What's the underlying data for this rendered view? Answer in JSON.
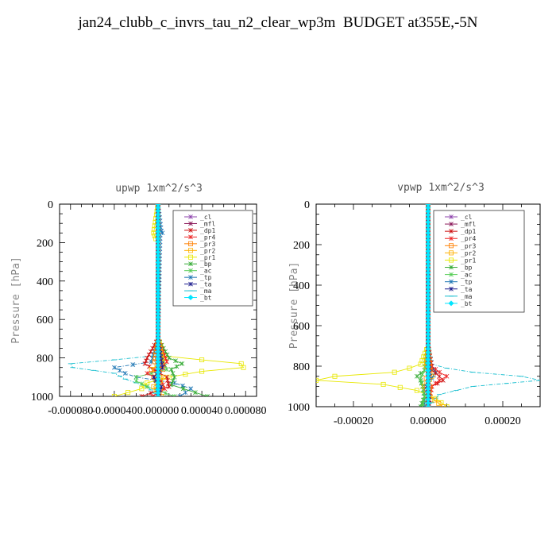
{
  "title": "jan24_clubb_c_invrs_tau_n2_clear_wp3m  BUDGET at355E,-5N",
  "legend_labels": [
    "_cl",
    "_mfl",
    "_dp1",
    "_pr4",
    "_pr3",
    "_pr2",
    "_pr1",
    "_bp",
    "_ac",
    "_tp",
    "_ta",
    "_ma",
    "_bt"
  ],
  "colors": {
    "_cl": "#8e44ad",
    "_mfl": "#8b1a5a",
    "_dp1": "#cc1111",
    "_pr4": "#ee2222",
    "_pr3": "#ff7f00",
    "_pr2": "#ffb000",
    "_pr1": "#e8e800",
    "_bp": "#33aa33",
    "_ac": "#55cc55",
    "_tp": "#1f77b4",
    "_ta": "#1a1a8c",
    "_ma": "#17becf",
    "_bt": "#00e5ff"
  },
  "chart_data": [
    {
      "type": "line",
      "title": "upwp  1xm^2/s^3",
      "ylabel": "Pressure [hPa]",
      "ylim": [
        1000,
        0
      ],
      "xlim": [
        -9e-05,
        9e-05
      ],
      "xticks": [
        "-0.000080",
        "-0.000040",
        "0.000000",
        "0.000040",
        "0.000080"
      ],
      "xtick_values": [
        -8e-05,
        -4e-05,
        0,
        4e-05,
        8e-05
      ],
      "yticks": [
        "0",
        "200",
        "400",
        "600",
        "800",
        "1000"
      ],
      "ytick_values": [
        0,
        200,
        400,
        600,
        800,
        1000
      ],
      "legend": "top-right",
      "series": [
        {
          "name": "_pr1",
          "p": [
            0,
            150,
            180,
            200,
            700,
            790,
            810,
            830,
            850,
            870,
            900,
            930,
            960,
            1000
          ],
          "v": [
            0,
            -4e-06,
            -2e-06,
            0,
            0,
            6e-06,
            4e-05,
            7.6e-05,
            7.8e-05,
            4e-05,
            1e-05,
            -1e-05,
            -1.5e-05,
            -4e-05
          ]
        },
        {
          "name": "_ma",
          "p": [
            0,
            700,
            790,
            810,
            830,
            850,
            880,
            910,
            950,
            1000
          ],
          "v": [
            0,
            0,
            -5e-06,
            -4e-05,
            -8e-05,
            -7.8e-05,
            -4e-05,
            -3e-05,
            -1e-05,
            0
          ]
        },
        {
          "name": "_tp",
          "p": [
            0,
            140,
            150,
            160,
            700,
            820,
            850,
            880,
            900,
            930,
            960,
            1000
          ],
          "v": [
            0,
            3e-06,
            4e-06,
            2e-06,
            0,
            -6e-06,
            -4e-05,
            -3e-05,
            -2e-05,
            1.5e-05,
            3e-05,
            2e-05
          ]
        },
        {
          "name": "_bp",
          "p": [
            0,
            700,
            800,
            830,
            860,
            900,
            940,
            1000
          ],
          "v": [
            0,
            0,
            1e-05,
            2.2e-05,
            1.2e-05,
            1.5e-05,
            1.2e-05,
            4.5e-05
          ]
        },
        {
          "name": "_ac",
          "p": [
            0,
            700,
            820,
            860,
            900,
            920,
            950,
            1000
          ],
          "v": [
            0,
            0,
            5e-06,
            8e-06,
            -2e-05,
            -2e-05,
            -1e-05,
            1.5e-05
          ]
        },
        {
          "name": "_dp1",
          "p": [
            0,
            700,
            800,
            830,
            860,
            900,
            950,
            1000
          ],
          "v": [
            0,
            0,
            -1e-05,
            -1.2e-05,
            -4e-06,
            8e-06,
            1e-05,
            -1.5e-05
          ]
        },
        {
          "name": "_pr4",
          "p": [
            0,
            700,
            820,
            850,
            880,
            920,
            960,
            1000
          ],
          "v": [
            0,
            0,
            8e-06,
            3e-06,
            -1e-05,
            3e-06,
            6e-06,
            -5e-06
          ]
        },
        {
          "name": "_pr2",
          "p": [
            0,
            700,
            820,
            860,
            900,
            950,
            1000
          ],
          "v": [
            0,
            0,
            4e-06,
            -6e-06,
            5e-06,
            -4e-06,
            3e-06
          ]
        },
        {
          "name": "_pr3",
          "p": [
            0,
            700,
            820,
            860,
            900,
            950,
            1000
          ],
          "v": [
            0,
            0,
            -3e-06,
            4e-06,
            -4e-06,
            3e-06,
            0
          ]
        },
        {
          "name": "_ta",
          "p": [
            0,
            700,
            850,
            900,
            950,
            1000
          ],
          "v": [
            0,
            0,
            4e-06,
            -4e-06,
            3e-06,
            0
          ]
        },
        {
          "name": "_cl",
          "p": [
            0,
            1000
          ],
          "v": [
            0,
            0
          ]
        },
        {
          "name": "_mfl",
          "p": [
            0,
            1000
          ],
          "v": [
            0,
            0
          ]
        },
        {
          "name": "_bt",
          "p": [
            0,
            1000
          ],
          "v": [
            0,
            0
          ]
        }
      ]
    },
    {
      "type": "line",
      "title": "vpwp  1xm^2/s^3",
      "ylabel": "Pressure [hPa]",
      "ylim": [
        1000,
        0
      ],
      "xlim": [
        -0.0003,
        0.0003
      ],
      "xticks": [
        "-0.00020",
        "0.00000",
        "0.00020"
      ],
      "xtick_values": [
        -0.0002,
        0,
        0.0002
      ],
      "yticks": [
        "0",
        "200",
        "400",
        "600",
        "800",
        "1000"
      ],
      "ytick_values": [
        0,
        200,
        400,
        600,
        800,
        1000
      ],
      "legend": "top-right",
      "series": [
        {
          "name": "_pr1",
          "p": [
            0,
            700,
            790,
            810,
            830,
            850,
            870,
            890,
            920,
            960,
            1000
          ],
          "v": [
            0,
            0,
            -2e-05,
            -5e-05,
            -9e-05,
            -0.00025,
            -0.0003,
            -0.00012,
            -3e-05,
            2e-05,
            5e-05
          ]
        },
        {
          "name": "_ma",
          "p": [
            0,
            700,
            790,
            810,
            830,
            850,
            870,
            900,
            940,
            1000
          ],
          "v": [
            0,
            0,
            1e-05,
            5e-05,
            0.00012,
            0.00025,
            0.0003,
            0.00012,
            3e-05,
            0
          ]
        },
        {
          "name": "_tp",
          "p": [
            0,
            700,
            800,
            830,
            860,
            900,
            950,
            1000
          ],
          "v": [
            0,
            0,
            1e-05,
            2e-05,
            1e-05,
            -1e-05,
            -1e-05,
            -1e-05
          ]
        },
        {
          "name": "_bp",
          "p": [
            0,
            700,
            820,
            850,
            870,
            900,
            950,
            1000
          ],
          "v": [
            0,
            0,
            -1e-05,
            -3e-05,
            -2e-05,
            -1.5e-05,
            -1e-05,
            -2e-05
          ]
        },
        {
          "name": "_ac",
          "p": [
            0,
            700,
            820,
            860,
            900,
            950,
            1000
          ],
          "v": [
            0,
            0,
            -1e-05,
            -2e-05,
            -1.5e-05,
            -1e-05,
            -1.5e-05
          ]
        },
        {
          "name": "_dp1",
          "p": [
            0,
            700,
            820,
            850,
            870,
            900,
            950,
            1000
          ],
          "v": [
            0,
            0,
            1e-05,
            3e-05,
            4e-05,
            1e-05,
            5e-06,
            0
          ]
        },
        {
          "name": "_pr4",
          "p": [
            0,
            700,
            800,
            830,
            850,
            870,
            900,
            950,
            1000
          ],
          "v": [
            0,
            0,
            1e-05,
            3e-05,
            5e-05,
            3e-05,
            1e-05,
            5e-06,
            0
          ]
        },
        {
          "name": "_pr2",
          "p": [
            0,
            700,
            800,
            850,
            900,
            950,
            1000
          ],
          "v": [
            0,
            0,
            -5e-06,
            1e-05,
            -1e-05,
            5e-06,
            4e-05
          ]
        },
        {
          "name": "_pr3",
          "p": [
            0,
            700,
            820,
            860,
            900,
            950,
            1000
          ],
          "v": [
            0,
            0,
            5e-06,
            -5e-06,
            5e-06,
            0,
            0
          ]
        },
        {
          "name": "_ta",
          "p": [
            0,
            700,
            850,
            900,
            950,
            1000
          ],
          "v": [
            0,
            0,
            4e-06,
            -4e-06,
            3e-06,
            0
          ]
        },
        {
          "name": "_cl",
          "p": [
            0,
            1000
          ],
          "v": [
            0,
            0
          ]
        },
        {
          "name": "_mfl",
          "p": [
            0,
            1000
          ],
          "v": [
            0,
            0
          ]
        },
        {
          "name": "_bt",
          "p": [
            0,
            1000
          ],
          "v": [
            0,
            0
          ]
        }
      ]
    }
  ]
}
